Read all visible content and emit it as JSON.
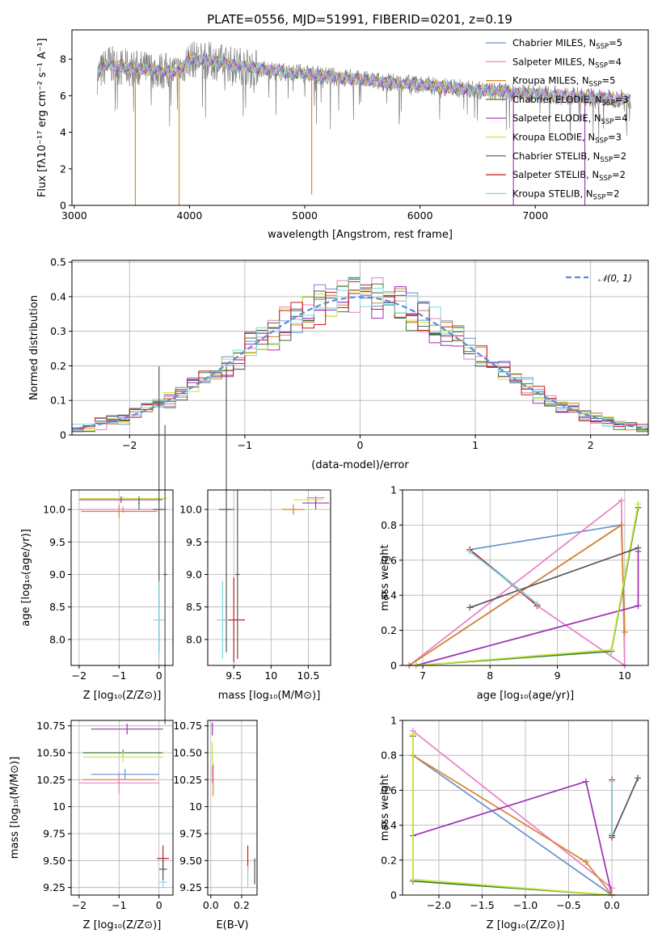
{
  "title": "PLATE=0556, MJD=51991, FIBERID=0201, z=0.19",
  "colors": {
    "chabrier_miles": "#6b8fce",
    "salpeter_miles": "#e87fc4",
    "kroupa_miles": "#d9822b",
    "chabrier_elodie": "#3a7a3a",
    "salpeter_elodie": "#9b30b5",
    "kroupa_elodie": "#c7e83a",
    "chabrier_stelib": "#555555",
    "salpeter_stelib": "#cc1a1a",
    "kroupa_stelib": "#7fd8de",
    "data": "#808080",
    "normal": "#5b8bd6"
  },
  "legend": [
    {
      "label": "Chabrier MILES, N",
      "sub": "SSP",
      "tail": "=5",
      "color": "chabrier_miles"
    },
    {
      "label": "Salpeter MILES, N",
      "sub": "SSP",
      "tail": "=4",
      "color": "salpeter_miles"
    },
    {
      "label": "Kroupa MILES, N",
      "sub": "SSP",
      "tail": "=5",
      "color": "kroupa_miles"
    },
    {
      "label": "Chabrier ELODIE, N",
      "sub": "SSP",
      "tail": "=3",
      "color": "chabrier_elodie"
    },
    {
      "label": "Salpeter ELODIE, N",
      "sub": "SSP",
      "tail": "=4",
      "color": "salpeter_elodie"
    },
    {
      "label": "Kroupa ELODIE, N",
      "sub": "SSP",
      "tail": "=3",
      "color": "kroupa_elodie"
    },
    {
      "label": "Chabrier STELIB, N",
      "sub": "SSP",
      "tail": "=2",
      "color": "chabrier_stelib"
    },
    {
      "label": "Salpeter STELIB, N",
      "sub": "SSP",
      "tail": "=2",
      "color": "salpeter_stelib"
    },
    {
      "label": "Kroupa STELIB, N",
      "sub": "SSP",
      "tail": "=2",
      "color": "kroupa_stelib"
    }
  ],
  "chart_data": [
    {
      "id": "spectrum",
      "type": "line",
      "xlabel": "wavelength [Angstrom, rest frame]",
      "ylabel": "Flux [fλ10⁻¹⁷ erg cm⁻² s⁻¹ A⁻¹]",
      "xlim": [
        2980,
        7980
      ],
      "ylim": [
        0,
        9.6
      ],
      "xticks": [
        3000,
        4000,
        5000,
        6000,
        7000
      ],
      "yticks": [
        0,
        2,
        4,
        6,
        8
      ],
      "xrange_data": [
        3200,
        7830
      ],
      "continuum_x": [
        3200,
        3300,
        3350,
        3500,
        3700,
        3900,
        4000,
        4200,
        4500,
        4800,
        5000,
        5300,
        5600,
        6000,
        6500,
        7000,
        7500,
        7830
      ],
      "continuum_y": [
        7.1,
        7.8,
        7.6,
        7.5,
        7.4,
        7.3,
        8.0,
        7.9,
        7.6,
        7.3,
        7.2,
        7.0,
        6.8,
        6.6,
        6.3,
        6.1,
        5.9,
        5.8
      ],
      "absorption_lines": [
        {
          "x": 3530,
          "depth_to": 0.0
        },
        {
          "x": 3910,
          "depth_to": 0.0
        },
        {
          "x": 5060,
          "depth_to": 0.6
        },
        {
          "x": 6810,
          "depth_to": 0.0
        },
        {
          "x": 7430,
          "depth_to": 0.0
        }
      ]
    },
    {
      "id": "residuals",
      "type": "bar",
      "xlabel": "(data-model)/error",
      "ylabel": "Normed distribution",
      "xlim": [
        -2.5,
        2.5
      ],
      "ylim": [
        0,
        0.505
      ],
      "xticks": [
        -2,
        -1,
        0,
        1,
        2
      ],
      "yticks": [
        0,
        0.1,
        0.2,
        0.3,
        0.4,
        0.5
      ],
      "legend_entry": "𝒩(0, 1)",
      "bin_width": 0.1,
      "bin_start": -2.5
    },
    {
      "id": "age_vs_Z",
      "type": "scatter",
      "xlabel": "Z [log₁₀(Z/Z⊙)]",
      "ylabel": "age  [log₁₀(age/yr)]",
      "xlim": [
        -2.2,
        0.35
      ],
      "ylim": [
        7.6,
        10.3
      ],
      "xticks": [
        -2,
        -1,
        0
      ],
      "yticks": [
        8.0,
        8.5,
        9.0,
        9.5,
        10.0
      ]
    },
    {
      "id": "age_vs_mass",
      "type": "scatter",
      "xlabel": "mass [log₁₀(M/M⊙)]",
      "xlim": [
        9.15,
        10.8
      ],
      "ylim": [
        7.6,
        10.3
      ],
      "xticks": [
        9.5,
        10.0,
        10.5
      ],
      "yticks": [
        8.0,
        8.5,
        9.0,
        9.5,
        10.0
      ]
    },
    {
      "id": "weight_vs_age",
      "type": "line",
      "xlabel": "age  [log₁₀(age/yr)]",
      "ylabel": "mass weight",
      "xlim": [
        6.7,
        10.35
      ],
      "ylim": [
        0,
        1.0
      ],
      "xticks": [
        7,
        8,
        9,
        10
      ],
      "yticks": [
        0.0,
        0.2,
        0.4,
        0.6,
        0.8,
        1.0
      ]
    },
    {
      "id": "mass_vs_Z",
      "type": "scatter",
      "xlabel": "Z [log₁₀(Z/Z⊙)]",
      "ylabel": "mass [log₁₀(M/M⊙)]",
      "xlim": [
        -2.2,
        0.35
      ],
      "ylim": [
        9.18,
        10.8
      ],
      "xticks": [
        -2,
        -1,
        0
      ],
      "yticks": [
        9.25,
        9.5,
        9.75,
        10.0,
        10.25,
        10.5,
        10.75
      ]
    },
    {
      "id": "mass_vs_ebv",
      "type": "scatter",
      "xlabel": "E(B-V)",
      "xlim": [
        -0.02,
        0.3
      ],
      "ylim": [
        9.18,
        10.8
      ],
      "xticks": [
        0.0,
        0.2
      ],
      "yticks": [
        9.25,
        9.5,
        9.75,
        10.0,
        10.25,
        10.5,
        10.75
      ]
    },
    {
      "id": "weight_vs_Z",
      "type": "line",
      "xlabel": "Z [log₁₀(Z/Z⊙)]",
      "ylabel": "mass weight",
      "xlim": [
        -2.42,
        0.42
      ],
      "ylim": [
        0,
        1.0
      ],
      "xticks": [
        -2.0,
        -1.5,
        -1.0,
        -0.5,
        0.0
      ],
      "yticks": [
        0.0,
        0.2,
        0.4,
        0.6,
        0.8,
        1.0
      ]
    }
  ],
  "models": {
    "weight_age": {
      "chabrier_miles": [
        [
          6.8,
          0.0
        ],
        [
          9.95,
          0.8
        ],
        [
          7.7,
          0.66
        ],
        [
          8.7,
          0.35
        ]
      ],
      "salpeter_miles": [
        [
          6.8,
          0.0
        ],
        [
          9.95,
          0.94
        ],
        [
          10.0,
          0.0
        ],
        [
          8.7,
          0.34
        ]
      ],
      "kroupa_miles": [
        [
          6.8,
          0.0
        ],
        [
          9.95,
          0.8
        ],
        [
          10.0,
          0.19
        ]
      ],
      "chabrier_elodie": [
        [
          6.9,
          0.0
        ],
        [
          9.8,
          0.08
        ],
        [
          10.2,
          0.9
        ]
      ],
      "salpeter_elodie": [
        [
          6.9,
          0.0
        ],
        [
          10.2,
          0.34
        ],
        [
          10.2,
          0.65
        ]
      ],
      "kroupa_elodie": [
        [
          6.9,
          0.0
        ],
        [
          9.8,
          0.09
        ],
        [
          10.2,
          0.92
        ]
      ],
      "chabrier_stelib": [
        [
          7.7,
          0.33
        ],
        [
          10.2,
          0.67
        ]
      ],
      "salpeter_stelib": [
        [
          7.7,
          0.66
        ],
        [
          8.7,
          0.34
        ]
      ],
      "kroupa_stelib": [
        [
          7.7,
          0.65
        ],
        [
          8.7,
          0.35
        ]
      ]
    },
    "weight_Z": {
      "chabrier_miles": [
        [
          -2.3,
          0.8
        ],
        [
          0.0,
          0.0
        ]
      ],
      "salpeter_miles": [
        [
          -2.3,
          0.94
        ],
        [
          0.0,
          0.04
        ]
      ],
      "kroupa_miles": [
        [
          -2.3,
          0.8
        ],
        [
          -0.3,
          0.19
        ],
        [
          0.0,
          0.0
        ]
      ],
      "chabrier_elodie": [
        [
          -2.3,
          0.91
        ],
        [
          -2.3,
          0.08
        ],
        [
          0.0,
          0.0
        ]
      ],
      "salpeter_elodie": [
        [
          -2.3,
          0.34
        ],
        [
          -0.3,
          0.65
        ],
        [
          0.0,
          0.0
        ]
      ],
      "kroupa_elodie": [
        [
          -2.3,
          0.92
        ],
        [
          -2.3,
          0.09
        ],
        [
          0.0,
          0.0
        ]
      ],
      "chabrier_stelib": [
        [
          0.0,
          0.33
        ],
        [
          0.3,
          0.67
        ]
      ],
      "salpeter_stelib": [
        [
          0.0,
          0.66
        ],
        [
          0.0,
          0.34
        ]
      ],
      "kroupa_stelib": [
        [
          0.0,
          0.65
        ],
        [
          0.0,
          0.35
        ]
      ]
    }
  }
}
